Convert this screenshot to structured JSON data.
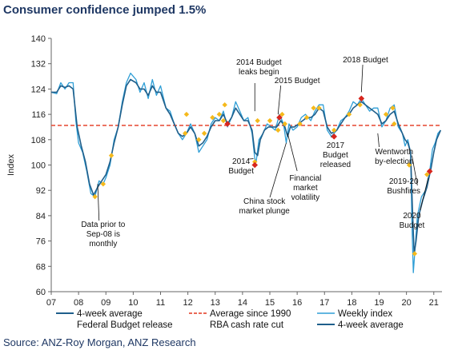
{
  "title": "Consumer confidence jumped 1.5%",
  "source": "Source: ANZ-Roy Morgan, ANZ Research",
  "colors": {
    "weekly": "#2e9ed6",
    "avg4w": "#1f5f8b",
    "avg_line": "#e8533f",
    "budget": "#f5b91b",
    "rba": "#d7261e",
    "axis": "#666666"
  },
  "chart_data": {
    "type": "line",
    "ylabel": "Index",
    "ylim": [
      60,
      140
    ],
    "yticks": [
      60,
      68,
      76,
      84,
      92,
      100,
      108,
      116,
      124,
      132,
      140
    ],
    "xlim": [
      2007,
      2021.3
    ],
    "xticks": [
      {
        "x": 2007,
        "label": "07"
      },
      {
        "x": 2008,
        "label": "08"
      },
      {
        "x": 2009,
        "label": "09"
      },
      {
        "x": 2010,
        "label": "10"
      },
      {
        "x": 2011,
        "label": "11"
      },
      {
        "x": 2012,
        "label": "12"
      },
      {
        "x": 2013,
        "label": "13"
      },
      {
        "x": 2014,
        "label": "14"
      },
      {
        "x": 2015,
        "label": "15"
      },
      {
        "x": 2016,
        "label": "16"
      },
      {
        "x": 2017,
        "label": "17"
      },
      {
        "x": 2018,
        "label": "18"
      },
      {
        "x": 2019,
        "label": "19"
      },
      {
        "x": 2020,
        "label": "20"
      },
      {
        "x": 2021,
        "label": "21"
      }
    ],
    "average_since_1990": 112.5,
    "series": [
      {
        "name": "Weekly index",
        "points": [
          [
            2007.0,
            123
          ],
          [
            2007.2,
            122.5
          ],
          [
            2007.35,
            126
          ],
          [
            2007.5,
            124
          ],
          [
            2007.65,
            126
          ],
          [
            2007.8,
            126
          ],
          [
            2007.9,
            114
          ],
          [
            2008.0,
            107
          ],
          [
            2008.15,
            104
          ],
          [
            2008.3,
            98
          ],
          [
            2008.45,
            91
          ],
          [
            2008.6,
            90
          ],
          [
            2008.75,
            95
          ],
          [
            2008.9,
            94
          ],
          [
            2009.0,
            96
          ],
          [
            2009.15,
            100
          ],
          [
            2009.3,
            108
          ],
          [
            2009.45,
            112
          ],
          [
            2009.6,
            120
          ],
          [
            2009.75,
            126
          ],
          [
            2009.9,
            129
          ],
          [
            2010.1,
            127
          ],
          [
            2010.25,
            123
          ],
          [
            2010.4,
            126
          ],
          [
            2010.55,
            121
          ],
          [
            2010.7,
            127
          ],
          [
            2010.85,
            122
          ],
          [
            2011.0,
            125
          ],
          [
            2011.2,
            118
          ],
          [
            2011.35,
            117
          ],
          [
            2011.5,
            113
          ],
          [
            2011.65,
            110
          ],
          [
            2011.8,
            108
          ],
          [
            2011.95,
            110
          ],
          [
            2012.1,
            113
          ],
          [
            2012.25,
            110
          ],
          [
            2012.4,
            104
          ],
          [
            2012.55,
            106
          ],
          [
            2012.7,
            108
          ],
          [
            2012.85,
            113
          ],
          [
            2013.0,
            115
          ],
          [
            2013.15,
            114
          ],
          [
            2013.3,
            117
          ],
          [
            2013.45,
            112
          ],
          [
            2013.6,
            115
          ],
          [
            2013.75,
            120
          ],
          [
            2013.9,
            117
          ],
          [
            2014.05,
            114
          ],
          [
            2014.2,
            115
          ],
          [
            2014.35,
            110
          ],
          [
            2014.45,
            102
          ],
          [
            2014.5,
            101
          ],
          [
            2014.6,
            108
          ],
          [
            2014.75,
            110
          ],
          [
            2014.9,
            113
          ],
          [
            2015.05,
            112
          ],
          [
            2015.2,
            111
          ],
          [
            2015.35,
            116
          ],
          [
            2015.5,
            113
          ],
          [
            2015.6,
            107
          ],
          [
            2015.7,
            113
          ],
          [
            2015.85,
            111
          ],
          [
            2016.0,
            112
          ],
          [
            2016.15,
            115
          ],
          [
            2016.3,
            116
          ],
          [
            2016.5,
            114
          ],
          [
            2016.65,
            117
          ],
          [
            2016.8,
            119
          ],
          [
            2016.95,
            119
          ],
          [
            2017.1,
            111
          ],
          [
            2017.25,
            109
          ],
          [
            2017.45,
            111
          ],
          [
            2017.6,
            114
          ],
          [
            2017.75,
            115
          ],
          [
            2017.9,
            117
          ],
          [
            2018.05,
            120
          ],
          [
            2018.2,
            119
          ],
          [
            2018.35,
            121
          ],
          [
            2018.5,
            119
          ],
          [
            2018.65,
            117
          ],
          [
            2018.8,
            118
          ],
          [
            2018.95,
            118
          ],
          [
            2019.1,
            112
          ],
          [
            2019.25,
            114
          ],
          [
            2019.4,
            118
          ],
          [
            2019.55,
            119
          ],
          [
            2019.7,
            112
          ],
          [
            2019.85,
            110
          ],
          [
            2019.95,
            106
          ],
          [
            2020.05,
            108
          ],
          [
            2020.15,
            104
          ],
          [
            2020.2,
            81
          ],
          [
            2020.25,
            66
          ],
          [
            2020.3,
            72
          ],
          [
            2020.4,
            84
          ],
          [
            2020.55,
            90
          ],
          [
            2020.7,
            92
          ],
          [
            2020.85,
            98
          ],
          [
            2020.95,
            105
          ],
          [
            2021.05,
            107
          ],
          [
            2021.15,
            110
          ],
          [
            2021.25,
            111
          ]
        ]
      },
      {
        "name": "4-week average",
        "points": [
          [
            2007.0,
            123
          ],
          [
            2007.2,
            123
          ],
          [
            2007.35,
            125
          ],
          [
            2007.5,
            124.5
          ],
          [
            2007.65,
            125
          ],
          [
            2007.8,
            124
          ],
          [
            2007.95,
            112
          ],
          [
            2008.1,
            106
          ],
          [
            2008.25,
            101
          ],
          [
            2008.4,
            94
          ],
          [
            2008.55,
            90.5
          ],
          [
            2008.7,
            93
          ],
          [
            2008.85,
            95
          ],
          [
            2009.0,
            97
          ],
          [
            2009.15,
            101
          ],
          [
            2009.3,
            107
          ],
          [
            2009.45,
            112
          ],
          [
            2009.6,
            119
          ],
          [
            2009.75,
            125
          ],
          [
            2009.9,
            127
          ],
          [
            2010.1,
            126
          ],
          [
            2010.25,
            124
          ],
          [
            2010.4,
            124
          ],
          [
            2010.55,
            122
          ],
          [
            2010.7,
            125
          ],
          [
            2010.85,
            123
          ],
          [
            2011.0,
            123
          ],
          [
            2011.2,
            118
          ],
          [
            2011.35,
            116
          ],
          [
            2011.5,
            113
          ],
          [
            2011.65,
            110
          ],
          [
            2011.8,
            109
          ],
          [
            2011.95,
            110
          ],
          [
            2012.1,
            112
          ],
          [
            2012.25,
            110
          ],
          [
            2012.4,
            106
          ],
          [
            2012.55,
            107
          ],
          [
            2012.7,
            109
          ],
          [
            2012.85,
            112
          ],
          [
            2013.0,
            114
          ],
          [
            2013.15,
            114
          ],
          [
            2013.3,
            116
          ],
          [
            2013.45,
            113
          ],
          [
            2013.6,
            115
          ],
          [
            2013.75,
            118
          ],
          [
            2013.9,
            116
          ],
          [
            2014.05,
            114
          ],
          [
            2014.2,
            114
          ],
          [
            2014.35,
            111
          ],
          [
            2014.45,
            104
          ],
          [
            2014.55,
            103
          ],
          [
            2014.65,
            108
          ],
          [
            2014.8,
            111
          ],
          [
            2014.95,
            112
          ],
          [
            2015.1,
            112
          ],
          [
            2015.25,
            112
          ],
          [
            2015.4,
            114
          ],
          [
            2015.55,
            112
          ],
          [
            2015.65,
            109
          ],
          [
            2015.75,
            112
          ],
          [
            2015.9,
            112
          ],
          [
            2016.05,
            113
          ],
          [
            2016.2,
            114
          ],
          [
            2016.35,
            115
          ],
          [
            2016.5,
            115
          ],
          [
            2016.65,
            116
          ],
          [
            2016.8,
            118
          ],
          [
            2016.95,
            117
          ],
          [
            2017.1,
            112
          ],
          [
            2017.25,
            110
          ],
          [
            2017.45,
            111
          ],
          [
            2017.6,
            113
          ],
          [
            2017.75,
            115
          ],
          [
            2017.9,
            116
          ],
          [
            2018.05,
            118
          ],
          [
            2018.2,
            119
          ],
          [
            2018.35,
            120
          ],
          [
            2018.5,
            119
          ],
          [
            2018.65,
            118
          ],
          [
            2018.8,
            117
          ],
          [
            2018.95,
            116
          ],
          [
            2019.1,
            113
          ],
          [
            2019.25,
            114
          ],
          [
            2019.4,
            116
          ],
          [
            2019.55,
            117
          ],
          [
            2019.7,
            113
          ],
          [
            2019.85,
            110
          ],
          [
            2019.95,
            108
          ],
          [
            2020.05,
            107
          ],
          [
            2020.15,
            104
          ],
          [
            2020.22,
            86
          ],
          [
            2020.28,
            72
          ],
          [
            2020.35,
            76
          ],
          [
            2020.45,
            84
          ],
          [
            2020.6,
            89
          ],
          [
            2020.75,
            93
          ],
          [
            2020.9,
            99
          ],
          [
            2021.0,
            104
          ],
          [
            2021.1,
            108
          ],
          [
            2021.25,
            111
          ]
        ]
      }
    ],
    "federal_budget_release": [
      [
        2008.6,
        90
      ],
      [
        2008.9,
        94
      ],
      [
        2009.2,
        103
      ],
      [
        2011.9,
        110
      ],
      [
        2011.95,
        116
      ],
      [
        2012.4,
        108
      ],
      [
        2012.6,
        110
      ],
      [
        2012.9,
        115
      ],
      [
        2013.15,
        116
      ],
      [
        2013.3,
        114
      ],
      [
        2013.35,
        119
      ],
      [
        2014.45,
        101
      ],
      [
        2014.55,
        114
      ],
      [
        2015.0,
        114
      ],
      [
        2015.3,
        111
      ],
      [
        2015.45,
        116
      ],
      [
        2015.55,
        113
      ],
      [
        2016.1,
        113
      ],
      [
        2016.35,
        115
      ],
      [
        2016.6,
        118
      ],
      [
        2016.8,
        118
      ],
      [
        2017.35,
        111
      ],
      [
        2017.9,
        116
      ],
      [
        2018.3,
        119
      ],
      [
        2019.25,
        116
      ],
      [
        2019.5,
        118
      ],
      [
        2019.55,
        113
      ],
      [
        2020.1,
        100
      ],
      [
        2020.3,
        72
      ],
      [
        2020.75,
        97
      ]
    ],
    "rba_cash_rate_cut": [
      [
        2013.45,
        113
      ],
      [
        2014.45,
        100
      ],
      [
        2015.35,
        115
      ],
      [
        2017.35,
        109
      ],
      [
        2018.35,
        121
      ],
      [
        2020.85,
        98
      ]
    ],
    "annotations": [
      {
        "text": [
          "2014 Budget",
          "leaks begin"
        ]
      },
      {
        "text": [
          "2015 Budget"
        ]
      },
      {
        "text": [
          "2018 Budget"
        ]
      },
      {
        "text": [
          "2014",
          "Budget"
        ]
      },
      {
        "text": [
          "2017",
          "Budget",
          "released"
        ]
      },
      {
        "text": [
          "Wentworth",
          "by-election"
        ]
      },
      {
        "text": [
          "Financial",
          "market",
          "volatility"
        ]
      },
      {
        "text": [
          "2019-20",
          "Bushfires"
        ]
      },
      {
        "text": [
          "China stock",
          "market plunge"
        ]
      },
      {
        "text": [
          "2020",
          "Budget"
        ]
      },
      {
        "text": [
          "Data prior to",
          "Sep-08 is",
          "monthly"
        ]
      }
    ],
    "legend": {
      "placement": "bottom",
      "entries": [
        {
          "label": "4-week average",
          "kind": "line-dark"
        },
        {
          "label": "Average since 1990",
          "kind": "dashed-red"
        },
        {
          "label": "Weekly index",
          "kind": "line-light"
        },
        {
          "label": "Federal Budget release",
          "kind": "none"
        },
        {
          "label": "RBA cash rate cut",
          "kind": "none"
        },
        {
          "label": "4-week average",
          "kind": "line-dark"
        }
      ]
    }
  }
}
